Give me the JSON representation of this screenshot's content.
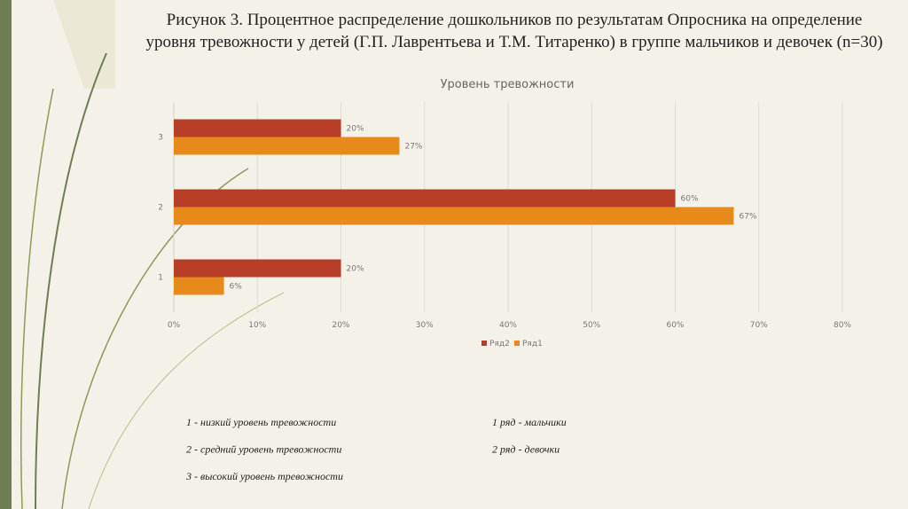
{
  "slide": {
    "title": [
      "Рисунок 3. Процентное распределение дошкольников по результатам Опросника на определение",
      "уровня тревожности у детей (Г.П. Лаврентьева и Т.М. Титаренко) в группе мальчиков и девочек (n=30)"
    ],
    "notes_left": [
      "1 - низкий уровень тревожности",
      "2 - средний уровень тревожности",
      "3 - высокий уровень тревожности"
    ],
    "notes_right": [
      "1 ряд - мальчики",
      "2 ряд - девочки"
    ]
  },
  "chart_data": {
    "type": "hbar",
    "title": "Уровень тревожности",
    "categories": [
      "1",
      "2",
      "3"
    ],
    "series": [
      {
        "name": "Ряд2",
        "color": "#b83e27",
        "values": [
          20,
          60,
          20
        ],
        "value_labels": [
          "20%",
          "60%",
          "20%"
        ]
      },
      {
        "name": "Ряд1",
        "color": "#e8891c",
        "values": [
          6,
          67,
          27
        ],
        "value_labels": [
          "6%",
          "67%",
          "27%"
        ]
      }
    ],
    "xlim": [
      0,
      80
    ],
    "xticks": [
      {
        "value": 0,
        "label": "0%"
      },
      {
        "value": 10,
        "label": "10%"
      },
      {
        "value": 20,
        "label": "20%"
      },
      {
        "value": 30,
        "label": "30%"
      },
      {
        "value": 40,
        "label": "40%"
      },
      {
        "value": 50,
        "label": "50%"
      },
      {
        "value": 60,
        "label": "60%"
      },
      {
        "value": 70,
        "label": "70%"
      },
      {
        "value": 80,
        "label": "80%"
      }
    ],
    "grid": true,
    "legend": "bottom"
  }
}
